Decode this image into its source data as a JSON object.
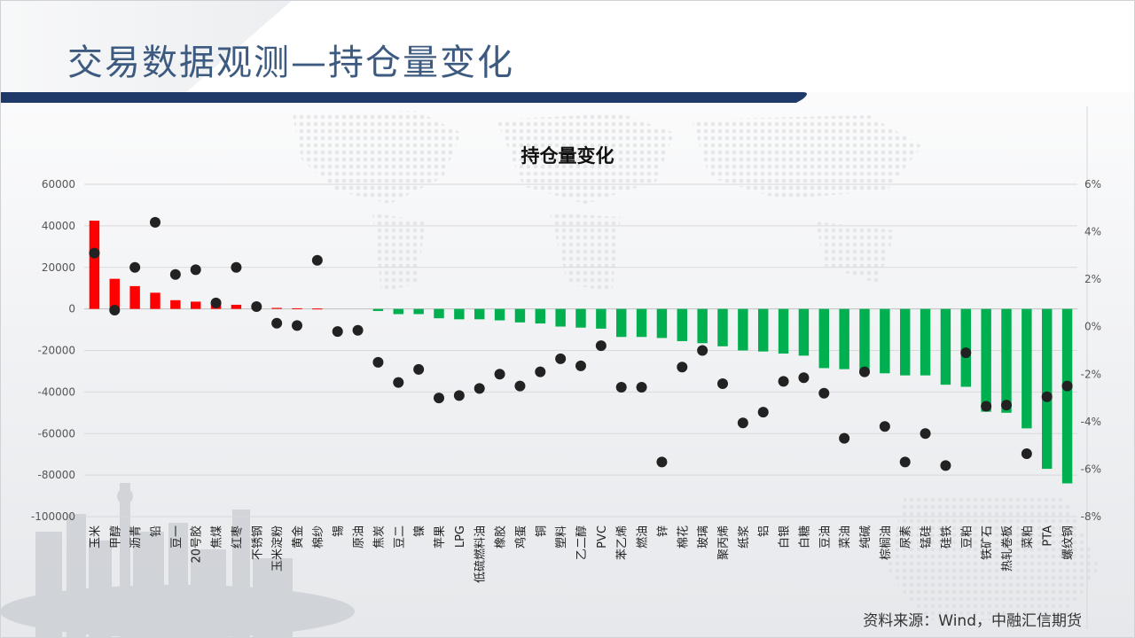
{
  "header": {
    "title": "交易数据观测—持仓量变化"
  },
  "footer": {
    "source": "资料来源：Wind，中融汇信期货"
  },
  "chart_data": {
    "type": "bar",
    "title": "持仓量变化",
    "xlabel": "",
    "ylabel": "",
    "ylim": [
      -100000,
      60000
    ],
    "y_ticks": [
      60000,
      40000,
      20000,
      0,
      -20000,
      -40000,
      -60000,
      -80000,
      -100000
    ],
    "y_tick_labels": [
      "60000",
      "40000",
      "20000",
      "0",
      "-20000",
      "-40000",
      "-60000",
      "-80000",
      "-100000"
    ],
    "y2lim": [
      -8,
      6
    ],
    "y2_ticks": [
      6,
      4,
      2,
      0,
      -2,
      -4,
      -6,
      -8
    ],
    "y2_tick_labels": [
      "6%",
      "4%",
      "2%",
      "0%",
      "-2%",
      "-4%",
      "-6%",
      "-8%"
    ],
    "grid": true,
    "colors": {
      "positive": "#ff0000",
      "negative": "#00b050",
      "dots": "#222222"
    },
    "categories": [
      "玉米",
      "甲醇",
      "沥青",
      "铅",
      "豆一",
      "20号胶",
      "焦煤",
      "红枣",
      "不锈钢",
      "玉米淀粉",
      "黄金",
      "棉纱",
      "锡",
      "原油",
      "焦炭",
      "豆二",
      "镍",
      "苹果",
      "LPG",
      "低硫燃料油",
      "橡胶",
      "鸡蛋",
      "铜",
      "塑料",
      "乙二醇",
      "PVC",
      "苯乙烯",
      "燃油",
      "锌",
      "棉花",
      "玻璃",
      "聚丙烯",
      "纸浆",
      "铝",
      "白银",
      "白糖",
      "豆油",
      "菜油",
      "纯碱",
      "棕榈油",
      "尿素",
      "锰硅",
      "硅铁",
      "豆粕",
      "铁矿石",
      "热轧卷板",
      "菜粕",
      "PTA",
      "螺纹钢"
    ],
    "series": [
      {
        "type": "bar",
        "axis": "left",
        "values": [
          42500,
          14500,
          11000,
          7800,
          4200,
          3500,
          2500,
          2000,
          1000,
          500,
          300,
          200,
          0,
          0,
          -1000,
          -2500,
          -2500,
          -4500,
          -5000,
          -5000,
          -5500,
          -6500,
          -7000,
          -8500,
          -9000,
          -9500,
          -13500,
          -13500,
          -14000,
          -15500,
          -16500,
          -18000,
          -20000,
          -20500,
          -21500,
          -22500,
          -28500,
          -29000,
          -29500,
          -31000,
          -32000,
          -32000,
          -36500,
          -37500,
          -49500,
          -50000,
          -57500,
          -77000,
          -84000
        ]
      },
      {
        "type": "scatter",
        "axis": "right",
        "values": [
          3.1,
          0.7,
          2.5,
          4.4,
          2.2,
          2.4,
          1.0,
          2.5,
          0.85,
          0.15,
          0.05,
          2.8,
          -0.2,
          -0.15,
          -1.5,
          -2.35,
          -1.8,
          -3.0,
          -2.9,
          -2.6,
          -2.0,
          -2.5,
          -1.9,
          -1.35,
          -1.65,
          -0.8,
          -2.55,
          -2.55,
          -5.7,
          -1.7,
          -1.0,
          -2.4,
          -4.05,
          -3.6,
          -2.3,
          -2.15,
          -2.8,
          -4.7,
          -1.9,
          -4.2,
          -5.7,
          -4.5,
          -5.85,
          -1.1,
          -3.35,
          -3.3,
          -5.35,
          -2.95,
          -2.5
        ]
      }
    ]
  }
}
